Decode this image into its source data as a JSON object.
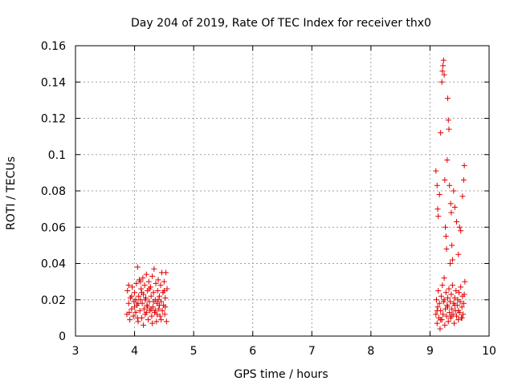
{
  "chart_data": {
    "type": "scatter",
    "title": "Day 204 of 2019, Rate Of TEC Index for receiver thx0",
    "xlabel": "GPS time / hours",
    "ylabel": "ROTI / TECUs",
    "xlim": [
      3,
      10
    ],
    "ylim": [
      0,
      0.16
    ],
    "x_ticks": [
      3,
      4,
      5,
      6,
      7,
      8,
      9,
      10
    ],
    "x_tick_labels": [
      "3",
      "4",
      "5",
      "6",
      "7",
      "8",
      "9",
      "10"
    ],
    "y_ticks": [
      0,
      0.02,
      0.04,
      0.06,
      0.08,
      0.1,
      0.12,
      0.14,
      0.16
    ],
    "y_tick_labels": [
      "0",
      "0.02",
      "0.04",
      "0.06",
      "0.08",
      "0.1",
      "0.12",
      "0.14",
      "0.16"
    ],
    "grid": true,
    "marker": "plus",
    "color": "#e00000",
    "series": [
      {
        "name": "ROTI",
        "points": [
          [
            3.87,
            0.012
          ],
          [
            3.88,
            0.025
          ],
          [
            3.9,
            0.018
          ],
          [
            3.92,
            0.009
          ],
          [
            3.93,
            0.021
          ],
          [
            3.95,
            0.015
          ],
          [
            3.96,
            0.027
          ],
          [
            3.98,
            0.011
          ],
          [
            3.99,
            0.019
          ],
          [
            4.0,
            0.024
          ],
          [
            4.02,
            0.013
          ],
          [
            4.03,
            0.029
          ],
          [
            4.04,
            0.017
          ],
          [
            4.05,
            0.038
          ],
          [
            4.06,
            0.008
          ],
          [
            4.07,
            0.022
          ],
          [
            4.08,
            0.031
          ],
          [
            4.09,
            0.014
          ],
          [
            4.1,
            0.02
          ],
          [
            4.11,
            0.026
          ],
          [
            4.12,
            0.01
          ],
          [
            4.13,
            0.018
          ],
          [
            4.14,
            0.032
          ],
          [
            4.15,
            0.023
          ],
          [
            4.16,
            0.015
          ],
          [
            4.17,
            0.028
          ],
          [
            4.18,
            0.012
          ],
          [
            4.19,
            0.021
          ],
          [
            4.2,
            0.034
          ],
          [
            4.21,
            0.017
          ],
          [
            4.22,
            0.025
          ],
          [
            4.23,
            0.009
          ],
          [
            4.24,
            0.03
          ],
          [
            4.25,
            0.019
          ],
          [
            4.26,
            0.014
          ],
          [
            4.27,
            0.027
          ],
          [
            4.28,
            0.022
          ],
          [
            4.29,
            0.011
          ],
          [
            4.3,
            0.033
          ],
          [
            4.31,
            0.016
          ],
          [
            4.32,
            0.024
          ],
          [
            4.33,
            0.037
          ],
          [
            4.34,
            0.013
          ],
          [
            4.35,
            0.02
          ],
          [
            4.36,
            0.029
          ],
          [
            4.37,
            0.008
          ],
          [
            4.38,
            0.018
          ],
          [
            4.39,
            0.025
          ],
          [
            4.4,
            0.031
          ],
          [
            4.41,
            0.015
          ],
          [
            4.42,
            0.022
          ],
          [
            4.43,
            0.011
          ],
          [
            4.44,
            0.028
          ],
          [
            4.45,
            0.019
          ],
          [
            4.46,
            0.035
          ],
          [
            4.47,
            0.014
          ],
          [
            4.48,
            0.024
          ],
          [
            4.49,
            0.017
          ],
          [
            4.5,
            0.03
          ],
          [
            4.51,
            0.012
          ],
          [
            4.52,
            0.021
          ],
          [
            4.53,
            0.035
          ],
          [
            4.54,
            0.008
          ],
          [
            4.55,
            0.026
          ],
          [
            3.9,
            0.028
          ],
          [
            3.95,
            0.022
          ],
          [
            4.0,
            0.016
          ],
          [
            4.05,
            0.01
          ],
          [
            4.1,
            0.03
          ],
          [
            4.15,
            0.006
          ],
          [
            4.2,
            0.013
          ],
          [
            4.25,
            0.026
          ],
          [
            4.3,
            0.007
          ],
          [
            4.35,
            0.014
          ],
          [
            4.4,
            0.02
          ],
          [
            4.45,
            0.009
          ],
          [
            4.5,
            0.025
          ],
          [
            4.02,
            0.02
          ],
          [
            4.12,
            0.024
          ],
          [
            4.22,
            0.016
          ],
          [
            4.32,
            0.019
          ],
          [
            4.42,
            0.017
          ],
          [
            4.52,
            0.016
          ],
          [
            3.91,
            0.013
          ],
          [
            4.06,
            0.018
          ],
          [
            4.18,
            0.02
          ],
          [
            4.28,
            0.015
          ],
          [
            4.38,
            0.012
          ],
          [
            9.1,
            0.012
          ],
          [
            9.11,
            0.02
          ],
          [
            9.12,
            0.007
          ],
          [
            9.13,
            0.016
          ],
          [
            9.14,
            0.025
          ],
          [
            9.15,
            0.01
          ],
          [
            9.16,
            0.018
          ],
          [
            9.17,
            0.004
          ],
          [
            9.18,
            0.014
          ],
          [
            9.19,
            0.022
          ],
          [
            9.2,
            0.009
          ],
          [
            9.21,
            0.028
          ],
          [
            9.22,
            0.012
          ],
          [
            9.23,
            0.019
          ],
          [
            9.24,
            0.032
          ],
          [
            9.25,
            0.006
          ],
          [
            9.26,
            0.015
          ],
          [
            9.27,
            0.024
          ],
          [
            9.28,
            0.011
          ],
          [
            9.29,
            0.017
          ],
          [
            9.3,
            0.021
          ],
          [
            9.31,
            0.008
          ],
          [
            9.32,
            0.026
          ],
          [
            9.33,
            0.013
          ],
          [
            9.34,
            0.019
          ],
          [
            9.35,
            0.01
          ],
          [
            9.36,
            0.023
          ],
          [
            9.37,
            0.015
          ],
          [
            9.38,
            0.028
          ],
          [
            9.39,
            0.012
          ],
          [
            9.4,
            0.018
          ],
          [
            9.41,
            0.007
          ],
          [
            9.42,
            0.021
          ],
          [
            9.43,
            0.014
          ],
          [
            9.44,
            0.025
          ],
          [
            9.45,
            0.011
          ],
          [
            9.46,
            0.017
          ],
          [
            9.47,
            0.02
          ],
          [
            9.48,
            0.009
          ],
          [
            9.49,
            0.024
          ],
          [
            9.5,
            0.013
          ],
          [
            9.51,
            0.019
          ],
          [
            9.52,
            0.027
          ],
          [
            9.53,
            0.01
          ],
          [
            9.54,
            0.016
          ],
          [
            9.55,
            0.022
          ],
          [
            9.56,
            0.012
          ],
          [
            9.57,
            0.018
          ],
          [
            9.58,
            0.023
          ],
          [
            9.12,
            0.014
          ],
          [
            9.18,
            0.009
          ],
          [
            9.24,
            0.02
          ],
          [
            9.3,
            0.016
          ],
          [
            9.36,
            0.011
          ],
          [
            9.42,
            0.017
          ],
          [
            9.48,
            0.014
          ],
          [
            9.54,
            0.01
          ],
          [
            9.1,
            0.091
          ],
          [
            9.12,
            0.083
          ],
          [
            9.13,
            0.07
          ],
          [
            9.14,
            0.066
          ],
          [
            9.16,
            0.078
          ],
          [
            9.18,
            0.112
          ],
          [
            9.2,
            0.14
          ],
          [
            9.21,
            0.146
          ],
          [
            9.22,
            0.149
          ],
          [
            9.23,
            0.152
          ],
          [
            9.24,
            0.144
          ],
          [
            9.25,
            0.086
          ],
          [
            9.26,
            0.06
          ],
          [
            9.27,
            0.055
          ],
          [
            9.28,
            0.048
          ],
          [
            9.29,
            0.097
          ],
          [
            9.3,
            0.131
          ],
          [
            9.31,
            0.119
          ],
          [
            9.32,
            0.114
          ],
          [
            9.33,
            0.083
          ],
          [
            9.34,
            0.04
          ],
          [
            9.35,
            0.073
          ],
          [
            9.36,
            0.068
          ],
          [
            9.37,
            0.05
          ],
          [
            9.38,
            0.042
          ],
          [
            9.4,
            0.08
          ],
          [
            9.42,
            0.071
          ],
          [
            9.45,
            0.063
          ],
          [
            9.48,
            0.045
          ],
          [
            9.5,
            0.06
          ],
          [
            9.52,
            0.058
          ],
          [
            9.55,
            0.077
          ],
          [
            9.57,
            0.086
          ],
          [
            9.58,
            0.094
          ],
          [
            9.59,
            0.03
          ]
        ]
      }
    ]
  }
}
